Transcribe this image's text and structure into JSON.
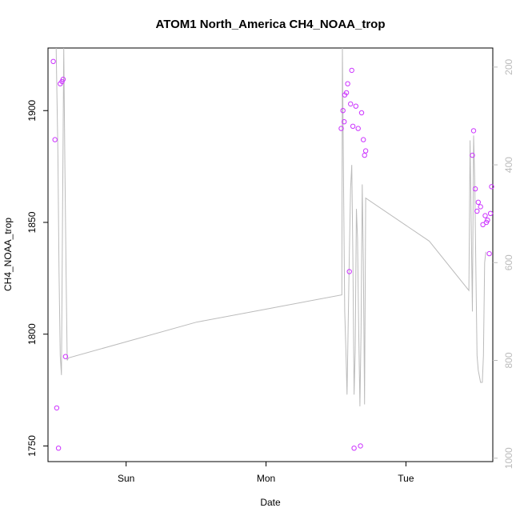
{
  "chart_data": {
    "type": "scatter",
    "title": "ATOM1 North_America CH4_NOAA_trop",
    "xlabel": "Date",
    "ylabel": "CH4_NOAA_trop",
    "x_unit": "hours since Sun 00:00",
    "xlim": [
      -13.4,
      62.9
    ],
    "ylim": [
      1743,
      1928
    ],
    "x_ticks": [
      {
        "label": "Sun",
        "value": 0
      },
      {
        "label": "Mon",
        "value": 24
      },
      {
        "label": "Tue",
        "value": 48
      }
    ],
    "y_ticks": [
      1750,
      1800,
      1850,
      1900
    ],
    "y2_ticks": [
      200,
      400,
      600,
      800,
      1000
    ],
    "y2lim": [
      1007,
      161
    ],
    "grid": false,
    "series": [
      {
        "color": "#bbbbbb",
        "axis": "right",
        "kind": "line",
        "points": [
          [
            -12.0,
            161
          ],
          [
            -11.7,
            380
          ],
          [
            -11.5,
            620
          ],
          [
            -11.3,
            790
          ],
          [
            -11.1,
            830
          ],
          [
            -10.9,
            500
          ],
          [
            -10.7,
            161
          ],
          [
            -10.5,
            400
          ],
          [
            -10.3,
            620
          ],
          [
            -10.1,
            800
          ],
          [
            -9.9,
            795
          ],
          [
            12.0,
            722
          ],
          [
            24.5,
            694
          ],
          [
            37.0,
            666
          ],
          [
            37.1,
            161
          ],
          [
            37.3,
            450
          ],
          [
            37.5,
            700
          ],
          [
            37.7,
            780
          ],
          [
            37.9,
            870
          ],
          [
            38.1,
            720
          ],
          [
            38.3,
            580
          ],
          [
            38.5,
            450
          ],
          [
            38.7,
            400
          ],
          [
            38.9,
            590
          ],
          [
            39.1,
            870
          ],
          [
            39.3,
            780
          ],
          [
            39.5,
            490
          ],
          [
            39.7,
            550
          ],
          [
            39.9,
            740
          ],
          [
            40.1,
            894
          ],
          [
            40.3,
            742
          ],
          [
            40.5,
            440
          ],
          [
            40.7,
            600
          ],
          [
            40.9,
            890
          ],
          [
            41.1,
            468
          ],
          [
            52.0,
            556
          ],
          [
            58.8,
            657
          ],
          [
            59.0,
            350
          ],
          [
            59.2,
            520
          ],
          [
            59.4,
            700
          ],
          [
            59.6,
            340
          ],
          [
            59.8,
            430
          ],
          [
            60.0,
            620
          ],
          [
            60.2,
            790
          ],
          [
            60.4,
            820
          ],
          [
            60.8,
            845
          ],
          [
            61.1,
            845
          ],
          [
            61.3,
            790
          ],
          [
            61.5,
            600
          ],
          [
            61.7,
            578
          ]
        ]
      },
      {
        "color": "#cc33ff",
        "axis": "left",
        "kind": "points",
        "points": [
          [
            -12.5,
            1922
          ],
          [
            -12.2,
            1887
          ],
          [
            -11.9,
            1767
          ],
          [
            -11.6,
            1749
          ],
          [
            -11.3,
            1912
          ],
          [
            -11.0,
            1913
          ],
          [
            -10.8,
            1914
          ],
          [
            -10.4,
            1790
          ],
          [
            36.9,
            1892
          ],
          [
            37.2,
            1900
          ],
          [
            37.4,
            1895
          ],
          [
            37.5,
            1907
          ],
          [
            37.8,
            1908
          ],
          [
            38.0,
            1912
          ],
          [
            38.3,
            1828
          ],
          [
            38.5,
            1903
          ],
          [
            38.7,
            1918
          ],
          [
            38.9,
            1893
          ],
          [
            39.1,
            1749
          ],
          [
            39.4,
            1902
          ],
          [
            39.8,
            1892
          ],
          [
            40.2,
            1750
          ],
          [
            40.4,
            1899
          ],
          [
            40.7,
            1887
          ],
          [
            40.9,
            1880
          ],
          [
            41.1,
            1882
          ],
          [
            59.4,
            1880
          ],
          [
            59.6,
            1891
          ],
          [
            59.9,
            1865
          ],
          [
            60.2,
            1855
          ],
          [
            60.4,
            1859
          ],
          [
            60.8,
            1857
          ],
          [
            61.2,
            1849
          ],
          [
            61.6,
            1853
          ],
          [
            61.8,
            1850
          ],
          [
            62.0,
            1851
          ],
          [
            62.3,
            1836
          ],
          [
            62.5,
            1854
          ],
          [
            62.7,
            1866
          ]
        ]
      }
    ]
  }
}
